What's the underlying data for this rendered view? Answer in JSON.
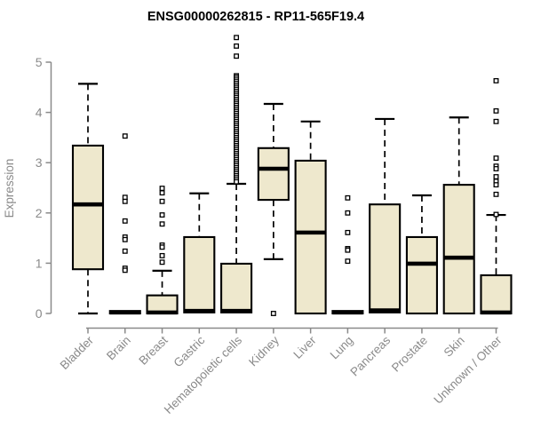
{
  "chart_data": {
    "type": "boxplot",
    "title": "ENSG00000262815 - RP11-565F19.4",
    "ylabel": "Expression",
    "xlabel": "",
    "ylim": [
      0,
      5.6
    ],
    "yticks": [
      0,
      1,
      2,
      3,
      4,
      5
    ],
    "grid": false,
    "legend": false,
    "categories": [
      "Bladder",
      "Brain",
      "Breast",
      "Gastric",
      "Hematopoietic cells",
      "Kidney",
      "Liver",
      "Lung",
      "Pancreas",
      "Prostate",
      "Skin",
      "Unknown / Other"
    ],
    "series": [
      {
        "category": "Bladder",
        "low": 0,
        "q1": 0.88,
        "median": 2.17,
        "q3": 3.34,
        "high": 4.57,
        "outliers": []
      },
      {
        "category": "Brain",
        "low": 0,
        "q1": 0,
        "median": 0.02,
        "q3": 0.05,
        "high": 0.05,
        "outliers": [
          3.53,
          2.31,
          2.23,
          1.84,
          1.52,
          1.47,
          1.24,
          0.9,
          0.86
        ]
      },
      {
        "category": "Breast",
        "low": 0,
        "q1": 0,
        "median": 0.02,
        "q3": 0.36,
        "high": 0.85,
        "outliers": [
          2.49,
          2.4,
          2.23,
          1.96,
          1.78,
          1.36,
          1.32,
          1.15,
          1.02
        ]
      },
      {
        "category": "Gastric",
        "low": 0,
        "q1": 0.02,
        "median": 0.05,
        "q3": 1.52,
        "high": 2.39,
        "outliers": []
      },
      {
        "category": "Hematopoietic cells",
        "low": 0,
        "q1": 0.02,
        "median": 0.05,
        "q3": 0.99,
        "high": 2.58,
        "outliers": [
          5.49,
          5.32,
          5.12,
          4.73,
          4.7,
          4.66,
          4.62,
          4.58,
          4.54,
          4.5,
          4.46,
          4.42,
          4.38,
          4.34,
          4.3,
          4.26,
          4.22,
          4.18,
          4.14,
          4.1,
          4.06,
          4.02,
          3.98,
          3.94,
          3.9,
          3.86,
          3.82,
          3.78,
          3.74,
          3.7,
          3.66,
          3.62,
          3.58,
          3.54,
          3.5,
          3.46,
          3.42,
          3.38,
          3.34,
          3.3,
          3.26,
          3.22,
          3.18,
          3.14,
          3.1,
          3.06,
          3.02,
          2.98,
          2.94,
          2.9,
          2.86,
          2.82,
          2.78,
          2.74,
          2.7,
          2.66,
          2.62
        ]
      },
      {
        "category": "Kidney",
        "low": 1.08,
        "q1": 2.26,
        "median": 2.88,
        "q3": 3.29,
        "high": 4.17,
        "outliers": [
          0
        ]
      },
      {
        "category": "Liver",
        "low": 0,
        "q1": 0,
        "median": 1.61,
        "q3": 3.04,
        "high": 3.82,
        "outliers": []
      },
      {
        "category": "Lung",
        "low": 0,
        "q1": 0,
        "median": 0.02,
        "q3": 0.05,
        "high": 0.05,
        "outliers": [
          2.3,
          2.0,
          1.61,
          1.29,
          1.26,
          1.04
        ]
      },
      {
        "category": "Pancreas",
        "low": 0,
        "q1": 0.02,
        "median": 0.06,
        "q3": 2.17,
        "high": 3.87,
        "outliers": []
      },
      {
        "category": "Prostate",
        "low": 0,
        "q1": 0,
        "median": 0.99,
        "q3": 1.52,
        "high": 2.35,
        "outliers": []
      },
      {
        "category": "Skin",
        "low": 0,
        "q1": 0,
        "median": 1.11,
        "q3": 2.56,
        "high": 3.9,
        "outliers": []
      },
      {
        "category": "Unknown / Other",
        "low": 0,
        "q1": 0,
        "median": 0.02,
        "q3": 0.76,
        "high": 1.96,
        "outliers": [
          4.63,
          4.03,
          3.82,
          3.09,
          2.93,
          2.88,
          2.72,
          2.63,
          2.56,
          2.37,
          1.97
        ]
      }
    ],
    "colors": {
      "box_fill": "#EEE8CD",
      "box_border": "#000000",
      "median": "#000000",
      "axis": "#8a8a8a",
      "title": "#000000",
      "background": "#FFFFFF"
    }
  }
}
